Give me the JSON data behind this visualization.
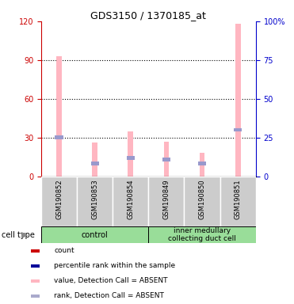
{
  "title": "GDS3150 / 1370185_at",
  "samples": [
    "GSM190852",
    "GSM190853",
    "GSM190854",
    "GSM190849",
    "GSM190850",
    "GSM190851"
  ],
  "value_pink": [
    93,
    26,
    35,
    27,
    18,
    118
  ],
  "rank_blue": [
    30,
    10,
    14,
    13,
    10,
    36
  ],
  "ylim_left": [
    0,
    120
  ],
  "ylim_right": [
    0,
    100
  ],
  "yticks_left": [
    0,
    30,
    60,
    90,
    120
  ],
  "yticks_right": [
    0,
    25,
    50,
    75,
    100
  ],
  "ytick_labels_right": [
    "0",
    "25",
    "50",
    "75",
    "100%"
  ],
  "pink_color": "#FFB6C1",
  "blue_color": "#9999CC",
  "red_color": "#CC0000",
  "dark_blue_color": "#000099",
  "left_tick_color": "#CC0000",
  "right_tick_color": "#0000CC",
  "bg_color": "#CCCCCC",
  "group_bg_color": "#99DD99",
  "control_label": "control",
  "imcd_label": "inner medullary\ncollecting duct cell",
  "cell_type_label": "cell type",
  "legend_labels": [
    "count",
    "percentile rank within the sample",
    "value, Detection Call = ABSENT",
    "rank, Detection Call = ABSENT"
  ],
  "legend_colors": [
    "#CC0000",
    "#000099",
    "#FFB6C1",
    "#AAAACC"
  ]
}
